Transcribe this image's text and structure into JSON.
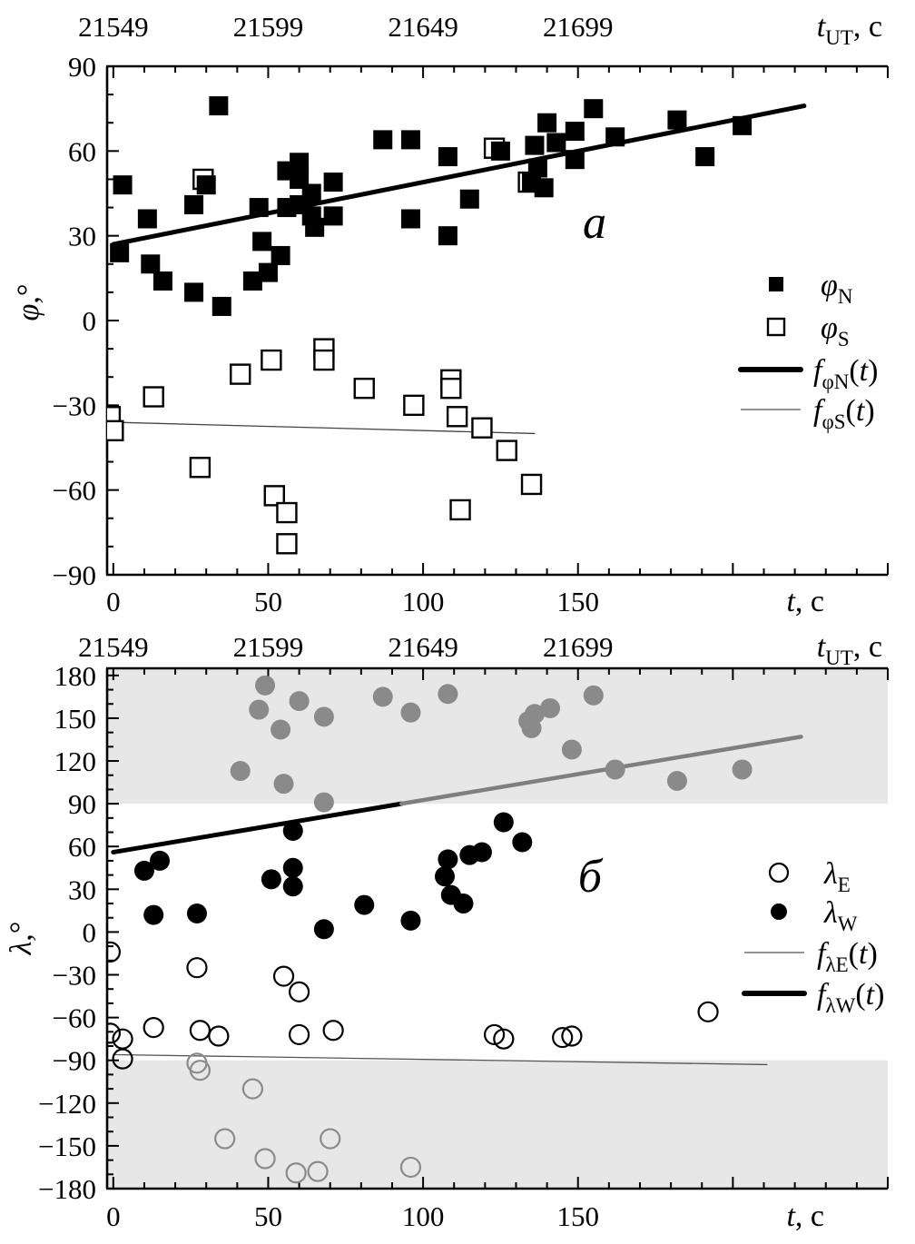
{
  "figure": {
    "background": "#ffffff",
    "band_color": "#e7e7e7",
    "gray": "#7f7f7f",
    "marker_gray": "#8a8a8a"
  },
  "chart_data": [
    {
      "id": "a",
      "type": "scatter",
      "panel_label": "a",
      "xlim": [
        -2,
        250
      ],
      "ylim": [
        -90,
        90
      ],
      "x_major": 50,
      "x_minor": 10,
      "y_major": 30,
      "y_minor": 10,
      "grid": false,
      "legend_position": "right-middle",
      "x_tick_labels": [
        0,
        50,
        100,
        150
      ],
      "y_tick_labels": [
        90,
        60,
        30,
        0,
        -30,
        -60,
        -90
      ],
      "top_tick_labels": [
        [
          0,
          "21549"
        ],
        [
          50,
          "21599"
        ],
        [
          100,
          "21649"
        ],
        [
          150,
          "21699"
        ]
      ],
      "xlabel": [
        {
          "text": "t",
          "style": "it"
        },
        {
          "text": ", c",
          "style": "n"
        }
      ],
      "top_label": [
        {
          "text": "t",
          "style": "it"
        },
        {
          "text": "UT",
          "style": "sub"
        },
        {
          "text": ", c",
          "style": "n"
        }
      ],
      "ylabel": [
        {
          "text": "φ",
          "style": "it"
        },
        {
          "text": ",°",
          "style": "n"
        }
      ],
      "bands": [],
      "series": [
        {
          "name": "phi_S",
          "marker": "square",
          "fill": "open",
          "color": "#000000",
          "points": [
            [
              29,
              50
            ],
            [
              123,
              61
            ],
            [
              134,
              49
            ],
            [
              -1,
              -34
            ],
            [
              0,
              -39
            ],
            [
              13,
              -27
            ],
            [
              28,
              -52
            ],
            [
              41,
              -19
            ],
            [
              51,
              -14
            ],
            [
              68,
              -10
            ],
            [
              68,
              -14
            ],
            [
              81,
              -24
            ],
            [
              97,
              -30
            ],
            [
              109,
              -21
            ],
            [
              109,
              -24
            ],
            [
              111,
              -34
            ],
            [
              119,
              -38
            ],
            [
              127,
              -46
            ],
            [
              135,
              -58
            ],
            [
              112,
              -67
            ],
            [
              52,
              -62
            ],
            [
              56,
              -68
            ],
            [
              56,
              -79
            ]
          ]
        },
        {
          "name": "phi_N",
          "marker": "square",
          "fill": "filled",
          "color": "#000000",
          "points": [
            [
              3,
              48
            ],
            [
              2,
              24
            ],
            [
              11,
              36
            ],
            [
              12,
              20
            ],
            [
              16,
              14
            ],
            [
              26,
              10
            ],
            [
              30,
              48
            ],
            [
              26,
              41
            ],
            [
              34,
              76
            ],
            [
              35,
              5
            ],
            [
              45,
              14
            ],
            [
              47,
              40
            ],
            [
              48,
              28
            ],
            [
              50,
              17
            ],
            [
              54,
              23
            ],
            [
              56,
              40
            ],
            [
              56,
              53
            ],
            [
              60,
              56
            ],
            [
              60,
              50
            ],
            [
              60,
              41
            ],
            [
              64,
              45
            ],
            [
              64,
              37
            ],
            [
              65,
              33
            ],
            [
              71,
              49
            ],
            [
              71,
              37
            ],
            [
              87,
              64
            ],
            [
              96,
              64
            ],
            [
              96,
              36
            ],
            [
              108,
              58
            ],
            [
              108,
              30
            ],
            [
              115,
              43
            ],
            [
              125,
              60
            ],
            [
              136,
              62
            ],
            [
              135,
              49
            ],
            [
              137,
              54
            ],
            [
              139,
              47
            ],
            [
              140,
              70
            ],
            [
              143,
              63
            ],
            [
              149,
              67
            ],
            [
              149,
              57
            ],
            [
              155,
              75
            ],
            [
              162,
              65
            ],
            [
              182,
              71
            ],
            [
              191,
              58
            ],
            [
              203,
              69
            ]
          ]
        }
      ],
      "lines": [
        {
          "name": "f_phiN",
          "width": 5,
          "color": "#000000",
          "segments": [
            {
              "from": [
                0,
                27
              ],
              "to": [
                223,
                76
              ]
            }
          ]
        },
        {
          "name": "f_phiS",
          "width": 1.3,
          "color": "#444444",
          "segments": [
            {
              "from": [
                0,
                -36
              ],
              "to": [
                136,
                -40
              ]
            }
          ]
        }
      ],
      "legend": [
        {
          "marker": "square-filled",
          "label": [
            {
              "text": "φ",
              "style": "it"
            },
            {
              "text": "N",
              "style": "sub"
            }
          ]
        },
        {
          "marker": "square-open",
          "label": [
            {
              "text": "φ",
              "style": "it"
            },
            {
              "text": "S",
              "style": "sub"
            }
          ]
        },
        {
          "marker": "line-thick",
          "label": [
            {
              "text": "f",
              "style": "it"
            },
            {
              "text": "φN",
              "style": "sub"
            },
            {
              "text": "(",
              "style": "n"
            },
            {
              "text": "t",
              "style": "it"
            },
            {
              "text": ")",
              "style": "n"
            }
          ]
        },
        {
          "marker": "line-thin",
          "label": [
            {
              "text": "f",
              "style": "it"
            },
            {
              "text": "φS",
              "style": "sub"
            },
            {
              "text": "(",
              "style": "n"
            },
            {
              "text": "t",
              "style": "it"
            },
            {
              "text": ")",
              "style": "n"
            }
          ]
        }
      ]
    },
    {
      "id": "b",
      "type": "scatter",
      "panel_label": "б",
      "xlim": [
        -2,
        250
      ],
      "ylim": [
        -180,
        185
      ],
      "x_major": 50,
      "x_minor": 10,
      "y_major": 30,
      "y_minor": 10,
      "grid": false,
      "legend_position": "right-middle",
      "x_tick_labels": [
        0,
        50,
        100,
        150
      ],
      "y_tick_labels": [
        180,
        150,
        120,
        90,
        60,
        30,
        0,
        -30,
        -60,
        -90,
        -120,
        -150,
        -180
      ],
      "top_tick_labels": [
        [
          0,
          "21549"
        ],
        [
          50,
          "21599"
        ],
        [
          100,
          "21649"
        ],
        [
          150,
          "21699"
        ]
      ],
      "xlabel": [
        {
          "text": "t",
          "style": "it"
        },
        {
          "text": ", c",
          "style": "n"
        }
      ],
      "top_label": [
        {
          "text": "t",
          "style": "it"
        },
        {
          "text": "UT",
          "style": "sub"
        },
        {
          "text": ", c",
          "style": "n"
        }
      ],
      "ylabel": [
        {
          "text": "λ",
          "style": "it"
        },
        {
          "text": ",°",
          "style": "n"
        }
      ],
      "bands": [
        [
          90,
          185
        ],
        [
          -180,
          -90
        ]
      ],
      "series": [
        {
          "name": "lambda_E",
          "marker": "circle",
          "fill": "open",
          "color": "#000000",
          "alt": {
            "op": "lte",
            "value": -90,
            "color": "#8a8a8a"
          },
          "points": [
            [
              -1,
              -14
            ],
            [
              -1,
              -71
            ],
            [
              3,
              -75
            ],
            [
              13,
              -67
            ],
            [
              27,
              -25
            ],
            [
              28,
              -69
            ],
            [
              34,
              -73
            ],
            [
              55,
              -31
            ],
            [
              60,
              -42
            ],
            [
              60,
              -72
            ],
            [
              71,
              -69
            ],
            [
              123,
              -72
            ],
            [
              126,
              -75
            ],
            [
              145,
              -74
            ],
            [
              148,
              -73
            ],
            [
              192,
              -56
            ],
            [
              3,
              -89
            ],
            [
              27,
              -92
            ],
            [
              28,
              -97
            ],
            [
              45,
              -110
            ],
            [
              36,
              -145
            ],
            [
              49,
              -159
            ],
            [
              59,
              -169
            ],
            [
              66,
              -168
            ],
            [
              70,
              -145
            ],
            [
              96,
              -165
            ]
          ]
        },
        {
          "name": "lambda_W",
          "marker": "circle",
          "fill": "filled",
          "color": "#000000",
          "alt": {
            "op": "gte",
            "value": 90,
            "color": "#8a8a8a"
          },
          "points": [
            [
              10,
              43
            ],
            [
              15,
              50
            ],
            [
              13,
              12
            ],
            [
              27,
              13
            ],
            [
              51,
              37
            ],
            [
              58,
              45
            ],
            [
              58,
              32
            ],
            [
              58,
              71
            ],
            [
              68,
              2
            ],
            [
              81,
              19
            ],
            [
              96,
              8
            ],
            [
              107,
              39
            ],
            [
              108,
              51
            ],
            [
              109,
              26
            ],
            [
              113,
              20
            ],
            [
              115,
              54
            ],
            [
              119,
              56
            ],
            [
              126,
              77
            ],
            [
              132,
              63
            ],
            [
              41,
              113
            ],
            [
              47,
              156
            ],
            [
              49,
              173
            ],
            [
              54,
              142
            ],
            [
              55,
              104
            ],
            [
              60,
              162
            ],
            [
              68,
              151
            ],
            [
              68,
              91
            ],
            [
              87,
              165
            ],
            [
              96,
              154
            ],
            [
              108,
              167
            ],
            [
              134,
              148
            ],
            [
              136,
              153
            ],
            [
              135,
              143
            ],
            [
              141,
              157
            ],
            [
              148,
              128
            ],
            [
              155,
              166
            ],
            [
              162,
              114
            ],
            [
              182,
              106
            ],
            [
              203,
              114
            ]
          ]
        }
      ],
      "lines": [
        {
          "name": "f_lambdaE",
          "width": 1.3,
          "color": "#555555",
          "segments": [
            {
              "from": [
                0,
                -86
              ],
              "to": [
                211,
                -93
              ]
            }
          ]
        },
        {
          "name": "f_lambdaW",
          "width": 5,
          "color": "#000000",
          "segments": [
            {
              "from": [
                0,
                56
              ],
              "to": [
                93,
                90
              ]
            },
            {
              "from": [
                93,
                90
              ],
              "to": [
                222,
                137
              ],
              "color": "#7f7f7f",
              "width": 4.5
            }
          ]
        }
      ],
      "legend": [
        {
          "marker": "circle-open",
          "label": [
            {
              "text": "λ",
              "style": "it"
            },
            {
              "text": "E",
              "style": "sub"
            }
          ]
        },
        {
          "marker": "circle-filled",
          "label": [
            {
              "text": "λ",
              "style": "it"
            },
            {
              "text": "W",
              "style": "sub"
            }
          ]
        },
        {
          "marker": "line-thin",
          "label": [
            {
              "text": "f",
              "style": "it"
            },
            {
              "text": "λE",
              "style": "sub"
            },
            {
              "text": "(",
              "style": "n"
            },
            {
              "text": "t",
              "style": "it"
            },
            {
              "text": ")",
              "style": "n"
            }
          ]
        },
        {
          "marker": "line-thick",
          "label": [
            {
              "text": "f",
              "style": "it"
            },
            {
              "text": "λW",
              "style": "sub"
            },
            {
              "text": "(",
              "style": "n"
            },
            {
              "text": "t",
              "style": "it"
            },
            {
              "text": ")",
              "style": "n"
            }
          ]
        }
      ]
    }
  ]
}
